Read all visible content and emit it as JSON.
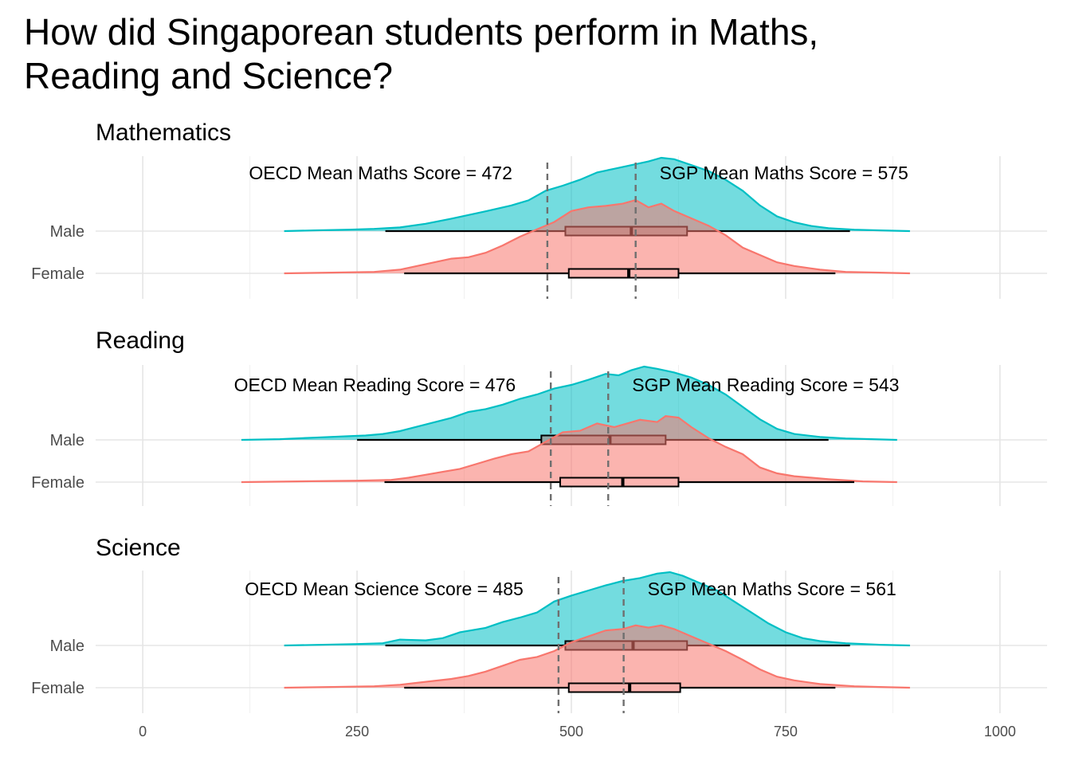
{
  "chart_data": {
    "type": "ridgeline-boxplot",
    "title_lines": [
      "How did Singaporean students perform in Maths,",
      "Reading and Science?"
    ],
    "x_ticks": [
      0,
      250,
      500,
      750,
      1000
    ],
    "xlim": [
      -55,
      1055
    ],
    "categories": [
      "Male",
      "Female"
    ],
    "colors": {
      "Male": "#00BFC4",
      "Female": "#F8766D"
    },
    "grid": true,
    "facets": [
      {
        "title": "Mathematics",
        "oecd_label": "OECD Mean Maths Score = 472",
        "sgp_label": "SGP Mean Maths Score = 575",
        "oecd_mean": 472,
        "sgp_mean": 575,
        "density": {
          "Male": [
            [
              165,
              0
            ],
            [
              200,
              0.01
            ],
            [
              240,
              0.02
            ],
            [
              270,
              0.03
            ],
            [
              300,
              0.05
            ],
            [
              330,
              0.1
            ],
            [
              360,
              0.17
            ],
            [
              380,
              0.22
            ],
            [
              400,
              0.27
            ],
            [
              430,
              0.35
            ],
            [
              450,
              0.42
            ],
            [
              470,
              0.55
            ],
            [
              490,
              0.62
            ],
            [
              510,
              0.7
            ],
            [
              530,
              0.8
            ],
            [
              550,
              0.85
            ],
            [
              570,
              0.9
            ],
            [
              590,
              0.95
            ],
            [
              605,
              1
            ],
            [
              620,
              0.98
            ],
            [
              640,
              0.9
            ],
            [
              660,
              0.82
            ],
            [
              680,
              0.7
            ],
            [
              700,
              0.55
            ],
            [
              720,
              0.35
            ],
            [
              740,
              0.2
            ],
            [
              760,
              0.12
            ],
            [
              780,
              0.07
            ],
            [
              800,
              0.04
            ],
            [
              830,
              0.02
            ],
            [
              860,
              0.01
            ],
            [
              895,
              0
            ]
          ],
          "Female": [
            [
              165,
              0
            ],
            [
              220,
              0.01
            ],
            [
              270,
              0.02
            ],
            [
              300,
              0.05
            ],
            [
              320,
              0.1
            ],
            [
              340,
              0.15
            ],
            [
              360,
              0.2
            ],
            [
              380,
              0.22
            ],
            [
              400,
              0.28
            ],
            [
              420,
              0.38
            ],
            [
              440,
              0.5
            ],
            [
              460,
              0.6
            ],
            [
              480,
              0.7
            ],
            [
              500,
              0.85
            ],
            [
              520,
              0.9
            ],
            [
              540,
              0.92
            ],
            [
              560,
              0.95
            ],
            [
              575,
              1
            ],
            [
              590,
              0.9
            ],
            [
              605,
              0.95
            ],
            [
              620,
              0.85
            ],
            [
              640,
              0.75
            ],
            [
              660,
              0.65
            ],
            [
              680,
              0.52
            ],
            [
              700,
              0.35
            ],
            [
              720,
              0.25
            ],
            [
              740,
              0.15
            ],
            [
              760,
              0.1
            ],
            [
              790,
              0.05
            ],
            [
              820,
              0.02
            ],
            [
              860,
              0.01
            ],
            [
              895,
              0
            ]
          ]
        },
        "boxes": {
          "Male": {
            "min": 283,
            "q1": 493,
            "median": 570,
            "q3": 635,
            "max": 825
          },
          "Female": {
            "min": 305,
            "q1": 497,
            "median": 567,
            "q3": 625,
            "max": 808
          }
        }
      },
      {
        "title": "Reading",
        "oecd_label": "OECD Mean Reading Score = 476",
        "sgp_label": "SGP Mean Reading Score = 543",
        "oecd_mean": 476,
        "sgp_mean": 543,
        "density": {
          "Male": [
            [
              115,
              0
            ],
            [
              160,
              0.01
            ],
            [
              200,
              0.03
            ],
            [
              240,
              0.05
            ],
            [
              260,
              0.06
            ],
            [
              280,
              0.08
            ],
            [
              300,
              0.12
            ],
            [
              320,
              0.18
            ],
            [
              340,
              0.24
            ],
            [
              360,
              0.3
            ],
            [
              380,
              0.38
            ],
            [
              400,
              0.42
            ],
            [
              420,
              0.48
            ],
            [
              440,
              0.56
            ],
            [
              460,
              0.62
            ],
            [
              480,
              0.7
            ],
            [
              500,
              0.75
            ],
            [
              520,
              0.82
            ],
            [
              540,
              0.9
            ],
            [
              555,
              0.88
            ],
            [
              570,
              0.95
            ],
            [
              585,
              1
            ],
            [
              600,
              0.97
            ],
            [
              620,
              0.92
            ],
            [
              640,
              0.85
            ],
            [
              660,
              0.75
            ],
            [
              680,
              0.62
            ],
            [
              700,
              0.45
            ],
            [
              720,
              0.28
            ],
            [
              740,
              0.15
            ],
            [
              760,
              0.08
            ],
            [
              790,
              0.04
            ],
            [
              820,
              0.02
            ],
            [
              850,
              0.01
            ],
            [
              880,
              0
            ]
          ],
          "Female": [
            [
              115,
              0
            ],
            [
              180,
              0.01
            ],
            [
              250,
              0.02
            ],
            [
              290,
              0.03
            ],
            [
              310,
              0.06
            ],
            [
              330,
              0.1
            ],
            [
              350,
              0.14
            ],
            [
              370,
              0.18
            ],
            [
              390,
              0.25
            ],
            [
              410,
              0.32
            ],
            [
              430,
              0.38
            ],
            [
              450,
              0.42
            ],
            [
              470,
              0.55
            ],
            [
              490,
              0.68
            ],
            [
              510,
              0.7
            ],
            [
              530,
              0.8
            ],
            [
              550,
              0.75
            ],
            [
              565,
              0.8
            ],
            [
              580,
              0.85
            ],
            [
              600,
              0.82
            ],
            [
              610,
              0.9
            ],
            [
              625,
              0.88
            ],
            [
              640,
              0.75
            ],
            [
              660,
              0.6
            ],
            [
              680,
              0.48
            ],
            [
              700,
              0.38
            ],
            [
              720,
              0.2
            ],
            [
              740,
              0.12
            ],
            [
              760,
              0.08
            ],
            [
              800,
              0.04
            ],
            [
              840,
              0.01
            ],
            [
              880,
              0
            ]
          ]
        },
        "boxes": {
          "Male": {
            "min": 250,
            "q1": 465,
            "median": 545,
            "q3": 610,
            "max": 800
          },
          "Female": {
            "min": 282,
            "q1": 487,
            "median": 560,
            "q3": 625,
            "max": 830
          }
        }
      },
      {
        "title": "Science",
        "oecd_label": "OECD Mean Science Score = 485",
        "sgp_label": "SGP Mean Maths Score = 561",
        "oecd_mean": 485,
        "sgp_mean": 561,
        "density": {
          "Male": [
            [
              165,
              0
            ],
            [
              210,
              0.01
            ],
            [
              250,
              0.02
            ],
            [
              280,
              0.03
            ],
            [
              300,
              0.08
            ],
            [
              330,
              0.07
            ],
            [
              350,
              0.1
            ],
            [
              370,
              0.18
            ],
            [
              400,
              0.24
            ],
            [
              420,
              0.32
            ],
            [
              440,
              0.38
            ],
            [
              460,
              0.45
            ],
            [
              480,
              0.6
            ],
            [
              500,
              0.68
            ],
            [
              520,
              0.75
            ],
            [
              540,
              0.82
            ],
            [
              560,
              0.88
            ],
            [
              580,
              0.92
            ],
            [
              600,
              0.98
            ],
            [
              615,
              1
            ],
            [
              630,
              0.95
            ],
            [
              650,
              0.85
            ],
            [
              670,
              0.75
            ],
            [
              690,
              0.6
            ],
            [
              710,
              0.45
            ],
            [
              730,
              0.3
            ],
            [
              750,
              0.18
            ],
            [
              770,
              0.1
            ],
            [
              790,
              0.06
            ],
            [
              820,
              0.03
            ],
            [
              860,
              0.01
            ],
            [
              895,
              0
            ]
          ],
          "Female": [
            [
              165,
              0
            ],
            [
              220,
              0.01
            ],
            [
              270,
              0.02
            ],
            [
              300,
              0.04
            ],
            [
              330,
              0.08
            ],
            [
              360,
              0.12
            ],
            [
              380,
              0.16
            ],
            [
              400,
              0.22
            ],
            [
              420,
              0.3
            ],
            [
              440,
              0.38
            ],
            [
              460,
              0.42
            ],
            [
              480,
              0.5
            ],
            [
              500,
              0.62
            ],
            [
              520,
              0.7
            ],
            [
              540,
              0.78
            ],
            [
              560,
              0.8
            ],
            [
              575,
              0.85
            ],
            [
              590,
              0.82
            ],
            [
              605,
              0.85
            ],
            [
              620,
              0.8
            ],
            [
              640,
              0.7
            ],
            [
              660,
              0.6
            ],
            [
              680,
              0.5
            ],
            [
              700,
              0.38
            ],
            [
              720,
              0.25
            ],
            [
              740,
              0.15
            ],
            [
              760,
              0.1
            ],
            [
              790,
              0.05
            ],
            [
              830,
              0.02
            ],
            [
              860,
              0.01
            ],
            [
              895,
              0
            ]
          ]
        },
        "boxes": {
          "Male": {
            "min": 283,
            "q1": 493,
            "median": 572,
            "q3": 635,
            "max": 825
          },
          "Female": {
            "min": 305,
            "q1": 497,
            "median": 568,
            "q3": 627,
            "max": 808
          }
        }
      }
    ]
  }
}
